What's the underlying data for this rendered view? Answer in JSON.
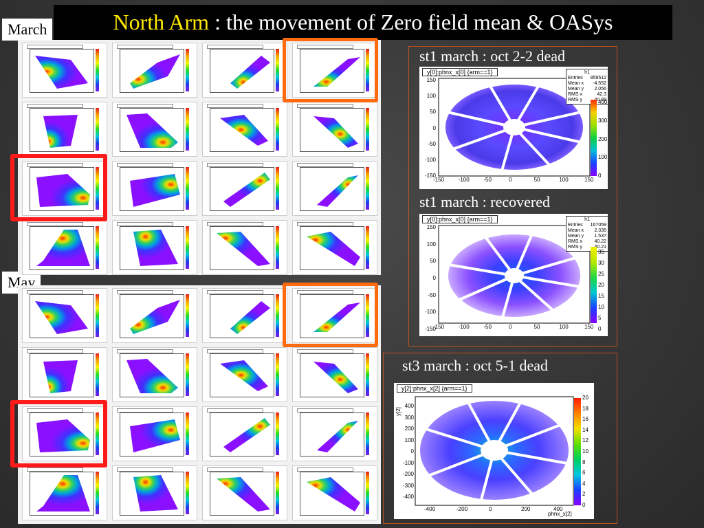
{
  "title": {
    "highlight": "North Arm",
    "rest": " : the movement of Zero field mean & OASys"
  },
  "labels": {
    "march": "March",
    "may": "May"
  },
  "captions": {
    "st1_dead": "st1 march : oct 2-2 dead",
    "st1_recovered": "st1 march : recovered",
    "st3_dead": "st3 march : oct 5-1 dead"
  },
  "plot1": {
    "title": "y[0]:phnx_x[0] {arm==1}",
    "stats": {
      "name": "h1",
      "rows": [
        [
          "Entries",
          "859512"
        ],
        [
          "Mean x",
          "-4.552"
        ],
        [
          "Mean y",
          "2.056"
        ],
        [
          "RMS x",
          "42.3"
        ],
        [
          "RMS y",
          "40.89"
        ]
      ]
    },
    "xticks": [
      "-150",
      "-100",
      "-50",
      "0",
      "50",
      "100",
      "150"
    ],
    "yticks": [
      "150",
      "100",
      "50",
      "0",
      "-50",
      "-100",
      "-150"
    ],
    "zticks": [
      "400",
      "300",
      "200",
      "100",
      "0"
    ]
  },
  "plot2": {
    "title": "y[0]:phnx_x[0] {arm==1}",
    "stats": {
      "name": "h1",
      "rows": [
        [
          "Entries",
          "167059"
        ],
        [
          "Mean x",
          "2.335"
        ],
        [
          "Mean y",
          "1.537"
        ],
        [
          "RMS x",
          "40.22"
        ],
        [
          "RMS y",
          "40.21"
        ]
      ]
    },
    "xticks": [
      "-150",
      "-100",
      "-50",
      "0",
      "50",
      "100",
      "150"
    ],
    "yticks": [
      "150",
      "100",
      "50",
      "0",
      "-50",
      "-100",
      "-150"
    ],
    "zticks": [
      "35",
      "30",
      "25",
      "20",
      "15",
      "10",
      "5",
      "0"
    ]
  },
  "plot3": {
    "title": "y[2]:phnx_x[2] {arm==1}",
    "ylabel": "y[2]",
    "xlabel": "phnx_x[2]",
    "xticks": [
      "-400",
      "-200",
      "0",
      "200",
      "400"
    ],
    "yticks": [
      "400",
      "300",
      "200",
      "100",
      "0",
      "-100",
      "-200",
      "-300",
      "-400"
    ],
    "zticks": [
      "20",
      "18",
      "16",
      "14",
      "12",
      "10",
      "8",
      "6",
      "4",
      "2",
      "0"
    ]
  },
  "colors": {
    "highlight_orange": "#ff6a10",
    "highlight_red": "#ff1a1a",
    "title_yellow": "#ffe800",
    "frame": "#c0501a"
  }
}
